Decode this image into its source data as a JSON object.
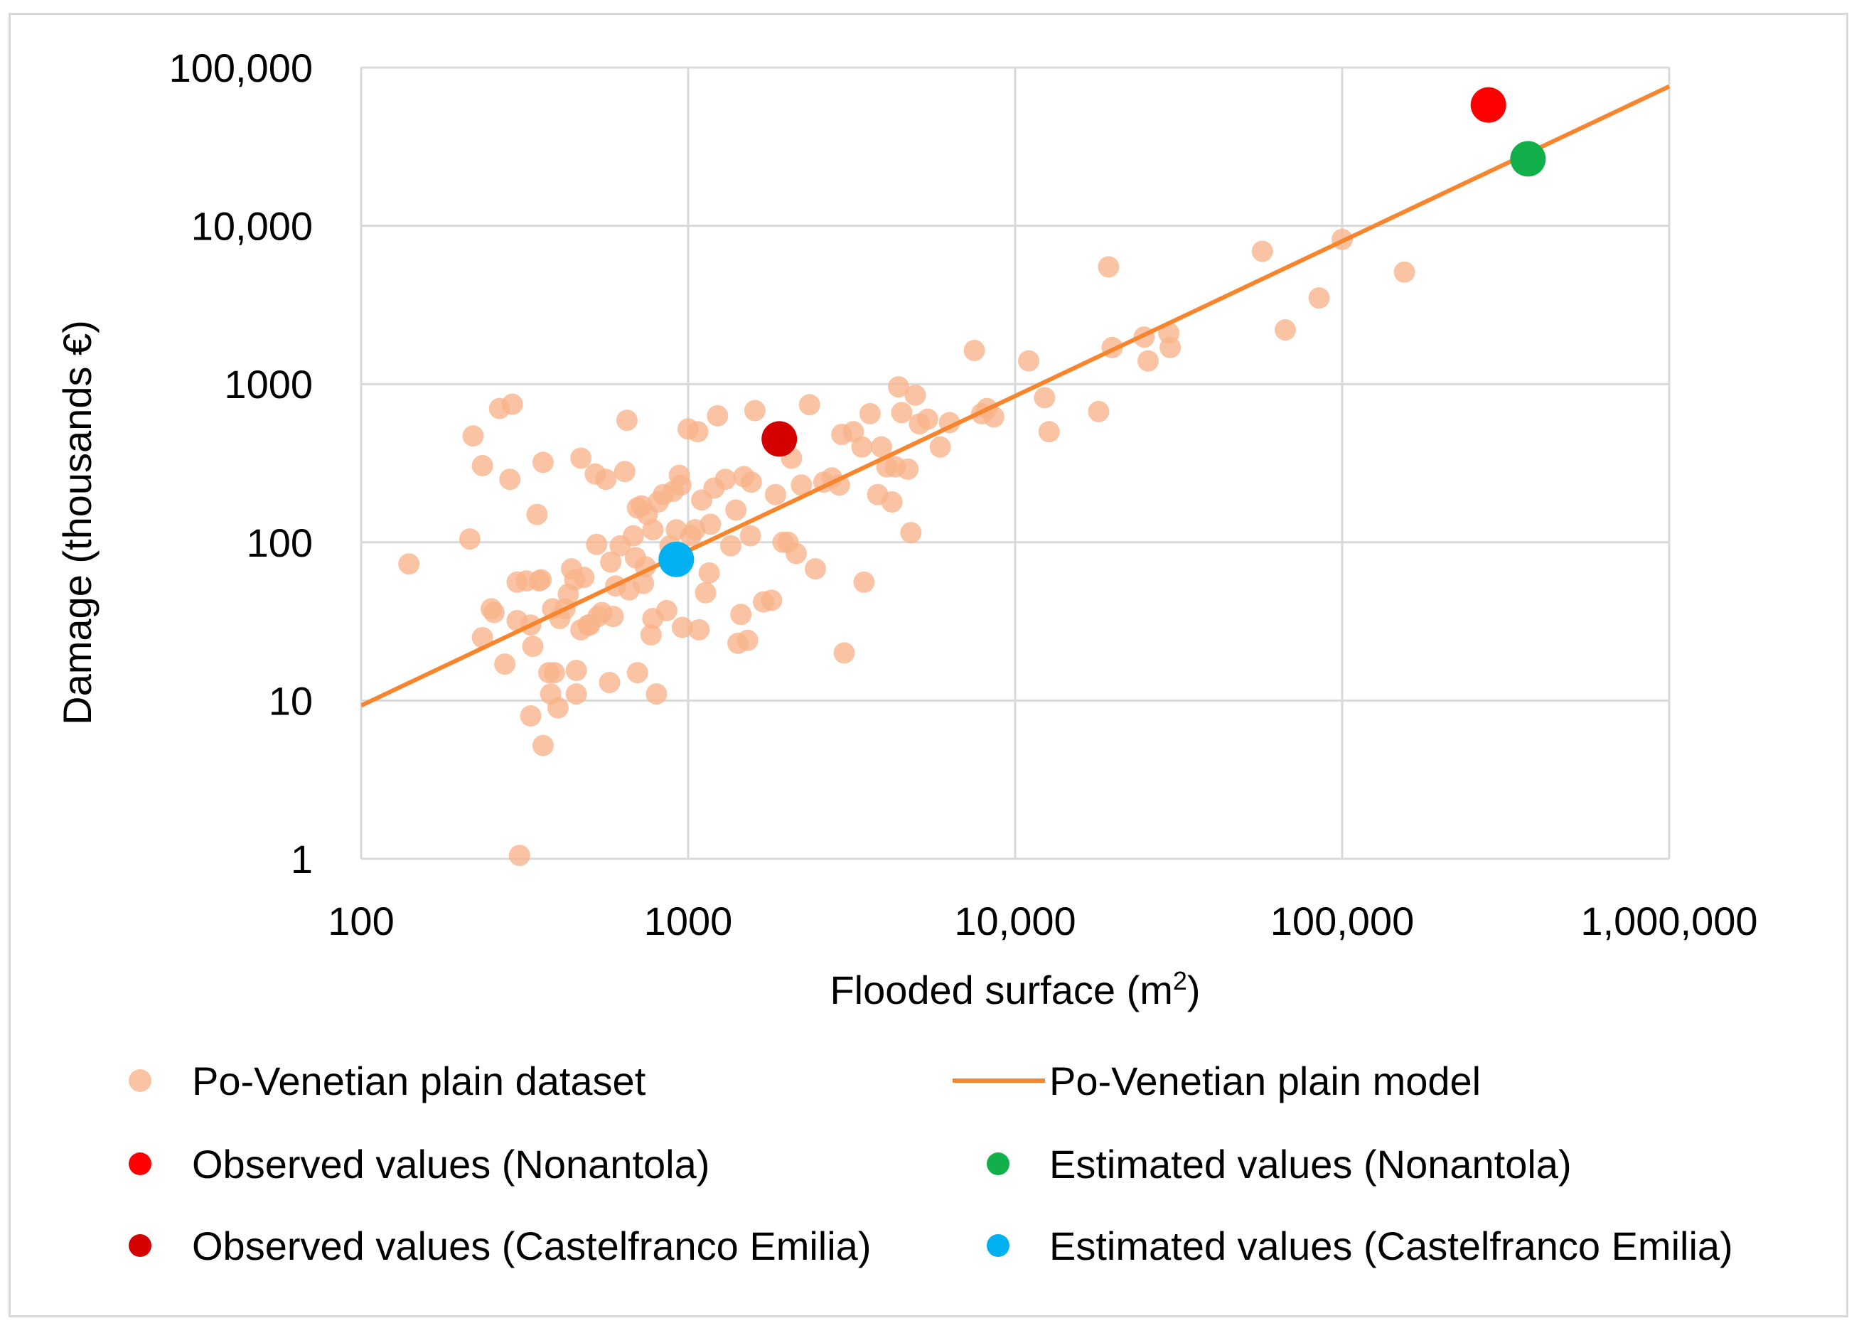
{
  "chart_data": {
    "type": "scatter",
    "xlabel": "Flooded surface (m",
    "xlabel_sup": "2",
    "xlabel_end": ")",
    "ylabel": "Damage (thousands €)",
    "xscale": "log",
    "yscale": "log",
    "xlim": [
      100,
      1000000
    ],
    "ylim": [
      1,
      100000
    ],
    "grid": true,
    "x_tick_values": [
      100,
      1000,
      10000,
      100000,
      1000000
    ],
    "x_tick_labels": [
      "100",
      "1000",
      "10,000",
      "100,000",
      "1,000,000"
    ],
    "y_tick_values": [
      1,
      10,
      100,
      1000,
      10000,
      100000
    ],
    "y_tick_labels": [
      "1",
      "10",
      "100",
      "1000",
      "10,000",
      "100,000"
    ],
    "legend_position": "bottom",
    "series": [
      {
        "name": "Po-Venetian plain dataset",
        "kind": "points",
        "color": "#f9b48a",
        "points": [
          [
            140,
            73
          ],
          [
            215,
            105
          ],
          [
            220,
            470
          ],
          [
            235,
            305
          ],
          [
            235,
            25
          ],
          [
            250,
            38
          ],
          [
            255,
            36
          ],
          [
            265,
            700
          ],
          [
            275,
            17
          ],
          [
            285,
            250
          ],
          [
            290,
            745
          ],
          [
            300,
            56
          ],
          [
            300,
            32
          ],
          [
            305,
            1.05
          ],
          [
            320,
            57
          ],
          [
            330,
            30
          ],
          [
            330,
            8
          ],
          [
            335,
            22
          ],
          [
            345,
            150
          ],
          [
            350,
            57
          ],
          [
            355,
            58
          ],
          [
            360,
            320
          ],
          [
            360,
            5.2
          ],
          [
            375,
            15
          ],
          [
            380,
            11
          ],
          [
            385,
            38
          ],
          [
            390,
            15
          ],
          [
            400,
            9
          ],
          [
            405,
            33
          ],
          [
            420,
            38
          ],
          [
            430,
            47
          ],
          [
            440,
            68
          ],
          [
            450,
            58
          ],
          [
            455,
            11
          ],
          [
            455,
            15.5
          ],
          [
            470,
            28
          ],
          [
            470,
            340
          ],
          [
            480,
            60
          ],
          [
            495,
            30
          ],
          [
            500,
            30
          ],
          [
            520,
            270
          ],
          [
            525,
            97
          ],
          [
            530,
            34
          ],
          [
            545,
            36
          ],
          [
            560,
            250
          ],
          [
            575,
            13
          ],
          [
            580,
            75
          ],
          [
            590,
            34
          ],
          [
            600,
            53
          ],
          [
            620,
            95
          ],
          [
            640,
            280
          ],
          [
            650,
            590
          ],
          [
            660,
            50
          ],
          [
            680,
            110
          ],
          [
            690,
            80
          ],
          [
            700,
            15
          ],
          [
            700,
            165
          ],
          [
            720,
            170
          ],
          [
            730,
            55
          ],
          [
            740,
            70
          ],
          [
            750,
            150
          ],
          [
            770,
            26
          ],
          [
            780,
            33
          ],
          [
            780,
            120
          ],
          [
            800,
            11
          ],
          [
            810,
            180
          ],
          [
            840,
            200
          ],
          [
            860,
            37
          ],
          [
            880,
            95
          ],
          [
            900,
            210
          ],
          [
            920,
            120
          ],
          [
            940,
            265
          ],
          [
            950,
            230
          ],
          [
            960,
            29
          ],
          [
            1000,
            520
          ],
          [
            1020,
            110
          ],
          [
            1050,
            120
          ],
          [
            1070,
            500
          ],
          [
            1080,
            28
          ],
          [
            1100,
            185
          ],
          [
            1130,
            48
          ],
          [
            1160,
            64
          ],
          [
            1170,
            130
          ],
          [
            1200,
            220
          ],
          [
            1230,
            630
          ],
          [
            1300,
            250
          ],
          [
            1350,
            95
          ],
          [
            1400,
            160
          ],
          [
            1420,
            23
          ],
          [
            1450,
            35
          ],
          [
            1480,
            260
          ],
          [
            1520,
            24
          ],
          [
            1550,
            110
          ],
          [
            1560,
            240
          ],
          [
            1600,
            680
          ],
          [
            1700,
            42
          ],
          [
            1800,
            43
          ],
          [
            1850,
            200
          ],
          [
            1950,
            100
          ],
          [
            2020,
            100
          ],
          [
            2070,
            340
          ],
          [
            2140,
            85
          ],
          [
            2220,
            230
          ],
          [
            2350,
            740
          ],
          [
            2450,
            68
          ],
          [
            2600,
            240
          ],
          [
            2750,
            255
          ],
          [
            2900,
            230
          ],
          [
            2950,
            480
          ],
          [
            3000,
            20
          ],
          [
            3200,
            500
          ],
          [
            3400,
            400
          ],
          [
            3450,
            56
          ],
          [
            3600,
            650
          ],
          [
            3800,
            200
          ],
          [
            3900,
            400
          ],
          [
            4050,
            300
          ],
          [
            4200,
            180
          ],
          [
            4300,
            300
          ],
          [
            4400,
            960
          ],
          [
            4500,
            660
          ],
          [
            4700,
            290
          ],
          [
            4800,
            115
          ],
          [
            4950,
            850
          ],
          [
            5100,
            560
          ],
          [
            5400,
            600
          ],
          [
            5900,
            400
          ],
          [
            6300,
            570
          ],
          [
            7500,
            1630
          ],
          [
            7900,
            650
          ],
          [
            8200,
            700
          ],
          [
            8600,
            620
          ],
          [
            11000,
            1400
          ],
          [
            12300,
            820
          ],
          [
            12700,
            500
          ],
          [
            18000,
            670
          ],
          [
            19300,
            5500
          ],
          [
            19800,
            1700
          ],
          [
            24800,
            1980
          ],
          [
            25500,
            1400
          ],
          [
            29500,
            2100
          ],
          [
            29800,
            1700
          ],
          [
            57000,
            6900
          ],
          [
            67000,
            2200
          ],
          [
            85000,
            3500
          ],
          [
            100000,
            8200
          ],
          [
            155000,
            5100
          ]
        ]
      },
      {
        "name": "Po-Venetian plain model",
        "kind": "line",
        "color": "#f7852e",
        "points": [
          [
            100,
            9.3
          ],
          [
            1000000,
            76000
          ]
        ]
      },
      {
        "name": "Observed values (Nonantola)",
        "kind": "points",
        "color": "#ff0000",
        "points": [
          [
            280000,
            58000
          ]
        ]
      },
      {
        "name": "Estimated values (Nonantola)",
        "kind": "points",
        "color": "#11b04b",
        "points": [
          [
            370000,
            26500
          ]
        ]
      },
      {
        "name": "Observed values (Castelfranco Emilia)",
        "kind": "points",
        "color": "#d40000",
        "points": [
          [
            1900,
            450
          ]
        ]
      },
      {
        "name": "Estimated values (Castelfranco Emilia)",
        "kind": "points",
        "color": "#00b0f0",
        "points": [
          [
            920,
            78
          ]
        ]
      }
    ]
  }
}
